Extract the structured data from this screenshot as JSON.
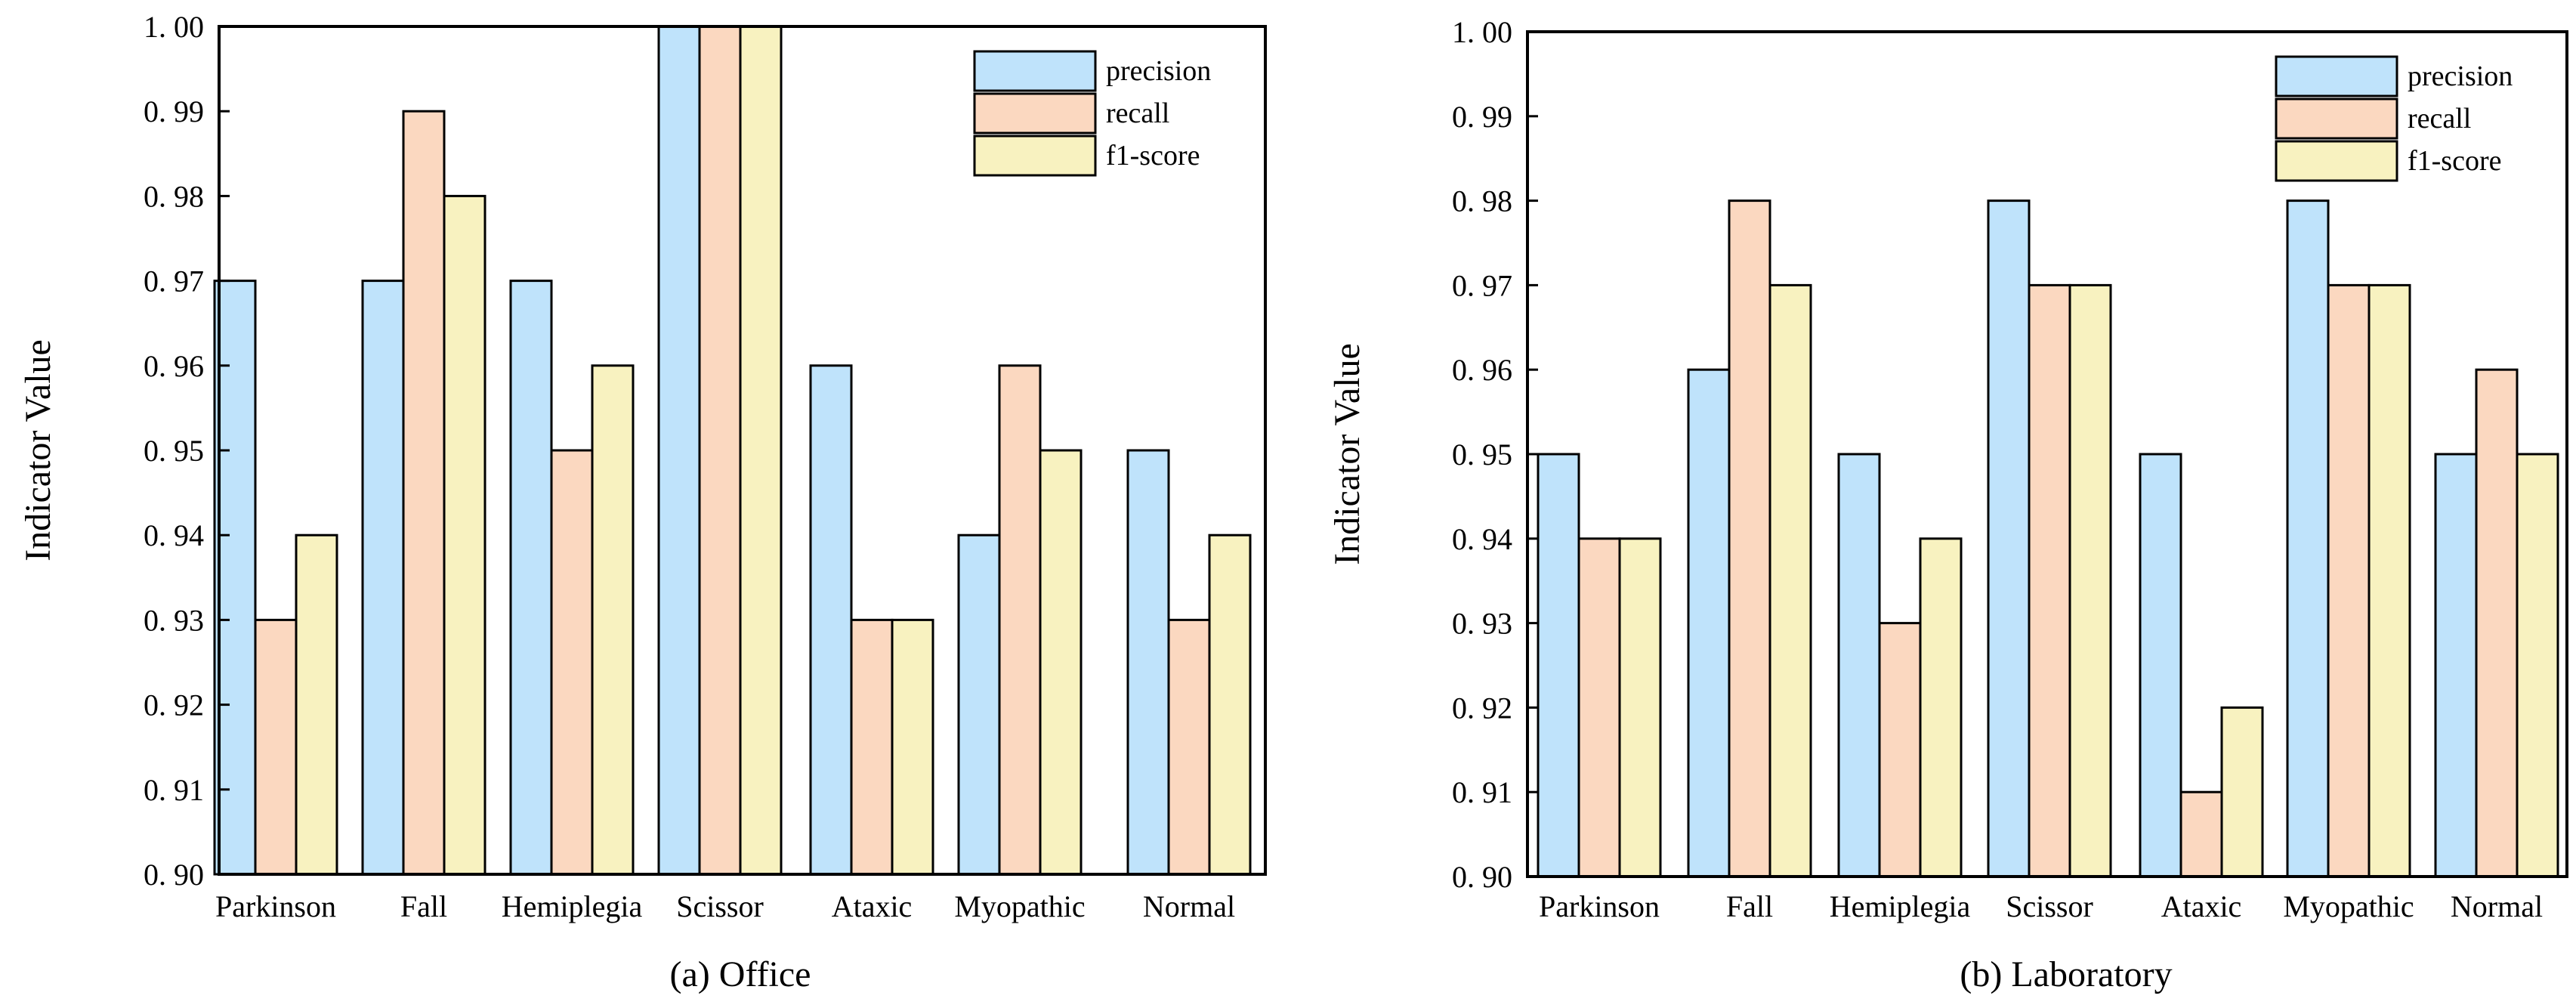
{
  "chart_data": [
    {
      "type": "bar",
      "caption": "(a) Office",
      "ylabel": "Indicator Value",
      "xlabel": "",
      "ylim": [
        0.9,
        1.0
      ],
      "yticks": [
        "0. 90",
        "0. 91",
        "0. 92",
        "0. 93",
        "0. 94",
        "0. 95",
        "0. 96",
        "0. 97",
        "0. 98",
        "0. 99",
        "1. 00"
      ],
      "categories": [
        "Parkinson",
        "Fall",
        "Hemiplegia",
        "Scissor",
        "Ataxic",
        "Myopathic",
        "Normal"
      ],
      "legend_position": "top-right",
      "grid": false,
      "series": [
        {
          "name": "precision",
          "color": "#bfe3fb",
          "values": [
            0.97,
            0.97,
            0.97,
            1.0,
            0.96,
            0.94,
            0.95
          ]
        },
        {
          "name": "recall",
          "color": "#fbd8c0",
          "values": [
            0.93,
            0.99,
            0.95,
            1.0,
            0.93,
            0.96,
            0.93
          ]
        },
        {
          "name": "f1-score",
          "color": "#f8f2c0",
          "values": [
            0.94,
            0.98,
            0.96,
            1.0,
            0.93,
            0.95,
            0.94
          ]
        }
      ]
    },
    {
      "type": "bar",
      "caption": "(b) Laboratory",
      "ylabel": "Indicator Value",
      "xlabel": "",
      "ylim": [
        0.9,
        1.0
      ],
      "yticks": [
        "0. 90",
        "0. 91",
        "0. 92",
        "0. 93",
        "0. 94",
        "0. 95",
        "0. 96",
        "0. 97",
        "0. 98",
        "0. 99",
        "1. 00"
      ],
      "categories": [
        "Parkinson",
        "Fall",
        "Hemiplegia",
        "Scissor",
        "Ataxic",
        "Myopathic",
        "Normal"
      ],
      "legend_position": "top-right",
      "grid": false,
      "series": [
        {
          "name": "precision",
          "color": "#bfe3fb",
          "values": [
            0.95,
            0.96,
            0.95,
            0.98,
            0.95,
            0.98,
            0.95
          ]
        },
        {
          "name": "recall",
          "color": "#fbd8c0",
          "values": [
            0.94,
            0.98,
            0.93,
            0.97,
            0.91,
            0.97,
            0.96
          ]
        },
        {
          "name": "f1-score",
          "color": "#f8f2c0",
          "values": [
            0.94,
            0.97,
            0.94,
            0.97,
            0.92,
            0.97,
            0.95
          ]
        }
      ]
    }
  ]
}
